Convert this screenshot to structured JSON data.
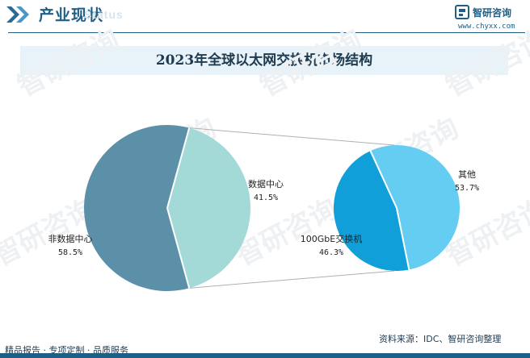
{
  "header": {
    "title": "产业现状",
    "watermark": "Status"
  },
  "brand": {
    "name": "智研咨询",
    "url": "www.chyxx.com"
  },
  "chart_data": {
    "type": "pie",
    "title": "2023年全球以太网交换机市场结构",
    "main_pie": {
      "slices": [
        {
          "label": "非数据中心",
          "value": 58.5,
          "value_text": "58.5%",
          "color": "#5b90a8"
        },
        {
          "label": "数据中心",
          "value": 41.5,
          "value_text": "41.5%",
          "color": "#a3dad8"
        }
      ]
    },
    "sub_pie": {
      "parent": "数据中心",
      "slices": [
        {
          "label": "其他",
          "value": 53.7,
          "value_text": "53.7%",
          "color": "#66cdf2"
        },
        {
          "label": "100GbE交换机",
          "value": 46.3,
          "value_text": "46.3%",
          "color": "#109fd9"
        }
      ]
    },
    "connector_color": "#b0b0b0"
  },
  "watermark_text": "智研咨询",
  "footer": {
    "left": "精品报告 · 专项定制 · 品质服务",
    "source": "资料来源：IDC、智研咨询整理"
  }
}
